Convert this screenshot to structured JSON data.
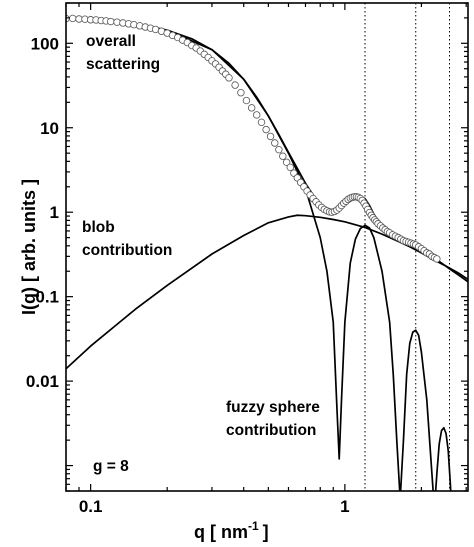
{
  "chart_data": {
    "type": "line",
    "xscale": "log",
    "yscale": "log",
    "xlim": [
      0.08,
      3.05
    ],
    "ylim": [
      0.0005,
      300
    ],
    "xlabel": {
      "main": "q  [ nm",
      "sup": "-1",
      "end": "]"
    },
    "ylabel": "I(q)  [ arb. units ]",
    "x_ticks": [
      {
        "value": 0.1,
        "label": "0.1"
      },
      {
        "value": 1,
        "label": "1"
      }
    ],
    "y_ticks": [
      {
        "value": 100,
        "label": "100"
      },
      {
        "value": 10,
        "label": "10"
      },
      {
        "value": 1,
        "label": "1"
      },
      {
        "value": 0.1,
        "label": "0.1"
      },
      {
        "value": 0.01,
        "label": "0.01"
      }
    ],
    "vlines_dotted": [
      1.2,
      1.9,
      2.58
    ],
    "annotations": [
      {
        "lines": [
          "overall",
          "scattering"
        ]
      },
      {
        "lines": [
          "blob",
          "contribution"
        ]
      },
      {
        "lines": [
          "fuzzy sphere",
          "contribution"
        ]
      },
      {
        "lines": [
          "g = 8"
        ]
      }
    ],
    "series": [
      {
        "style": "solid",
        "x": [
          0.08,
          0.1,
          0.12,
          0.15,
          0.2,
          0.25,
          0.3,
          0.35,
          0.4,
          0.45,
          0.5,
          0.55,
          0.6,
          0.65,
          0.7,
          0.75,
          0.8,
          0.85,
          0.9,
          0.95,
          1.0,
          1.05,
          1.1,
          1.15,
          1.2,
          1.25,
          1.3,
          1.35,
          1.4,
          1.5,
          1.6,
          1.7,
          1.8,
          1.9,
          2.0,
          2.2,
          2.4,
          2.6,
          2.8,
          3.05
        ],
        "y": [
          200,
          192,
          183,
          170,
          143,
          113,
          84,
          58,
          37.5,
          23,
          13.8,
          8.3,
          5.1,
          3.3,
          2.2,
          1.6,
          1.25,
          1.05,
          1.0,
          1.1,
          1.3,
          1.45,
          1.55,
          1.55,
          1.45,
          1.2,
          0.95,
          0.8,
          0.7,
          0.6,
          0.52,
          0.46,
          0.43,
          0.41,
          0.36,
          0.3,
          0.25,
          0.21,
          0.18,
          0.15
        ]
      },
      {
        "style": "solid",
        "x": [
          0.08,
          0.1,
          0.15,
          0.2,
          0.3,
          0.4,
          0.5,
          0.6,
          0.65,
          0.7,
          0.8,
          0.9,
          1.0,
          1.2,
          1.4,
          1.6,
          1.8,
          2.0,
          2.2,
          2.5,
          2.8,
          3.05
        ],
        "y": [
          0.014,
          0.026,
          0.071,
          0.136,
          0.32,
          0.53,
          0.75,
          0.88,
          0.92,
          0.91,
          0.87,
          0.82,
          0.77,
          0.66,
          0.55,
          0.46,
          0.39,
          0.33,
          0.28,
          0.23,
          0.19,
          0.16
        ]
      },
      {
        "style": "solid",
        "x": [
          0.08,
          0.15,
          0.2,
          0.3,
          0.4,
          0.5,
          0.6,
          0.7,
          0.8,
          0.85,
          0.9,
          0.93,
          0.95,
          0.97,
          1.0,
          1.05,
          1.1,
          1.15,
          1.2,
          1.25,
          1.3,
          1.4,
          1.5,
          1.55,
          1.6,
          1.65,
          1.7,
          1.75,
          1.8,
          1.85,
          1.9,
          1.95,
          2.0,
          2.1,
          2.2,
          2.25,
          2.3,
          2.35,
          2.4,
          2.45,
          2.5,
          2.55,
          2.6,
          2.65
        ],
        "y": [
          200,
          170,
          143,
          84,
          37.5,
          13.8,
          5.0,
          1.9,
          0.5,
          0.2,
          0.05,
          0.005,
          0.0012,
          0.006,
          0.05,
          0.25,
          0.48,
          0.64,
          0.7,
          0.65,
          0.5,
          0.2,
          0.05,
          0.012,
          0.002,
          0.0004,
          0.002,
          0.012,
          0.028,
          0.038,
          0.04,
          0.035,
          0.022,
          0.006,
          0.0008,
          0.0003,
          0.0008,
          0.0018,
          0.0026,
          0.0028,
          0.0024,
          0.0015,
          0.0006,
          0.0002
        ]
      },
      {
        "style": "circles",
        "x": [
          0.08,
          0.085,
          0.09,
          0.095,
          0.1,
          0.105,
          0.11,
          0.115,
          0.12,
          0.127,
          0.134,
          0.141,
          0.148,
          0.156,
          0.164,
          0.172,
          0.18,
          0.19,
          0.2,
          0.21,
          0.22,
          0.23,
          0.24,
          0.25,
          0.26,
          0.27,
          0.28,
          0.29,
          0.3,
          0.31,
          0.32,
          0.33,
          0.34,
          0.35,
          0.37,
          0.39,
          0.41,
          0.43,
          0.45,
          0.47,
          0.49,
          0.51,
          0.53,
          0.55,
          0.57,
          0.59,
          0.61,
          0.63,
          0.65,
          0.67,
          0.69,
          0.71,
          0.73,
          0.75,
          0.77,
          0.79,
          0.81,
          0.83,
          0.85,
          0.87,
          0.89,
          0.91,
          0.93,
          0.95,
          0.97,
          0.99,
          1.01,
          1.03,
          1.05,
          1.07,
          1.09,
          1.11,
          1.13,
          1.15,
          1.17,
          1.19,
          1.21,
          1.23,
          1.25,
          1.27,
          1.29,
          1.31,
          1.33,
          1.35,
          1.38,
          1.41,
          1.44,
          1.47,
          1.5,
          1.54,
          1.58,
          1.62,
          1.66,
          1.7,
          1.74,
          1.78,
          1.82,
          1.86,
          1.9,
          1.95,
          2.0,
          2.05,
          2.1,
          2.15,
          2.2,
          2.25,
          2.3
        ],
        "y": [
          196,
          197,
          194,
          193,
          190,
          189,
          186,
          184,
          181,
          178,
          174,
          170,
          166,
          161,
          156,
          151,
          146,
          139,
          132,
          124,
          117,
          109,
          102,
          94,
          88,
          81,
          74,
          68,
          62,
          57,
          52,
          47,
          43,
          39,
          32,
          26,
          21,
          17.2,
          14.2,
          11.6,
          9.5,
          7.9,
          6.6,
          5.5,
          4.6,
          3.9,
          3.4,
          2.9,
          2.55,
          2.25,
          2.0,
          1.78,
          1.6,
          1.45,
          1.33,
          1.22,
          1.14,
          1.08,
          1.04,
          1.01,
          1.0,
          1.02,
          1.06,
          1.12,
          1.2,
          1.28,
          1.35,
          1.42,
          1.47,
          1.5,
          1.52,
          1.52,
          1.5,
          1.45,
          1.38,
          1.28,
          1.18,
          1.08,
          0.99,
          0.92,
          0.86,
          0.81,
          0.77,
          0.73,
          0.69,
          0.65,
          0.62,
          0.59,
          0.57,
          0.54,
          0.52,
          0.5,
          0.48,
          0.46,
          0.45,
          0.44,
          0.43,
          0.42,
          0.41,
          0.39,
          0.37,
          0.35,
          0.33,
          0.32,
          0.3,
          0.29,
          0.28
        ]
      }
    ]
  }
}
